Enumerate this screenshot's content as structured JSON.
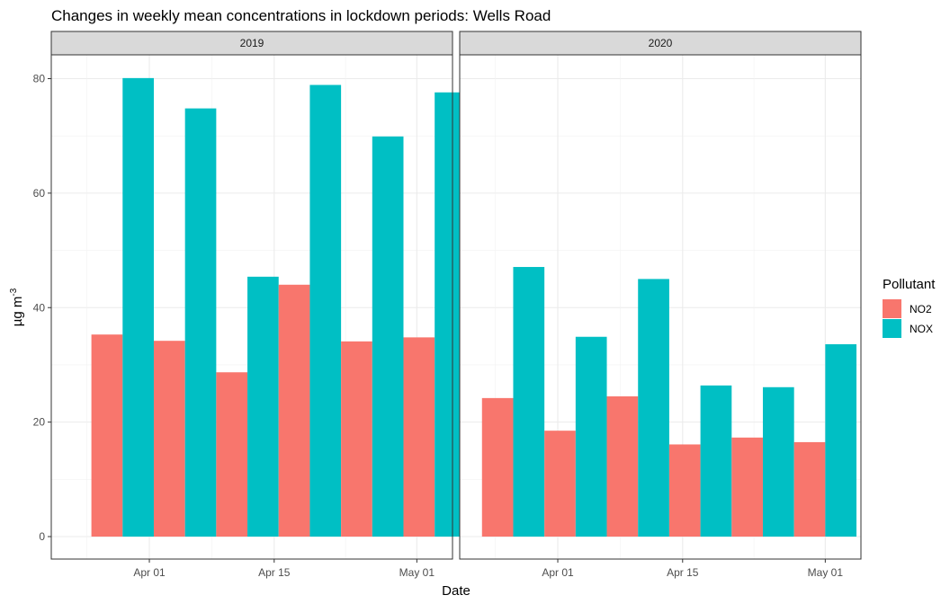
{
  "chart_data": {
    "type": "bar",
    "title": "Changes in weekly mean concentrations in lockdown periods: Wells Road",
    "xlabel": "Date",
    "ylabel": "µg m",
    "ylabel_superscript": "-3",
    "ylim": [
      0,
      84
    ],
    "yticks": [
      0,
      20,
      40,
      60,
      80
    ],
    "grid": true,
    "legend": {
      "title": "Pollutant",
      "position": "right",
      "entries": [
        {
          "name": "NO2",
          "color": "#F8766D"
        },
        {
          "name": "NOX",
          "color": "#00BFC4"
        }
      ]
    },
    "panels": [
      {
        "label": "2019",
        "x_range": [
          "2019-03-21",
          "2019-05-05"
        ],
        "xticks": [
          {
            "date": "2019-04-01",
            "label": "Apr 01"
          },
          {
            "date": "2019-04-15",
            "label": "Apr 15"
          },
          {
            "date": "2019-05-01",
            "label": "May 01"
          }
        ],
        "categories": [
          "2019-03-29",
          "2019-04-05",
          "2019-04-12",
          "2019-04-19",
          "2019-04-26",
          "2019-05-03"
        ],
        "series": [
          {
            "name": "NO2",
            "values": [
              35.3,
              34.2,
              28.7,
              44.0,
              34.1,
              34.8
            ]
          },
          {
            "name": "NOX",
            "values": [
              80.1,
              74.8,
              45.4,
              78.9,
              69.9,
              77.6
            ]
          }
        ]
      },
      {
        "label": "2020",
        "x_range": [
          "2020-03-21",
          "2020-05-05"
        ],
        "xticks": [
          {
            "date": "2020-04-01",
            "label": "Apr 01"
          },
          {
            "date": "2020-04-15",
            "label": "Apr 15"
          },
          {
            "date": "2020-05-01",
            "label": "May 01"
          }
        ],
        "categories": [
          "2020-03-27",
          "2020-04-03",
          "2020-04-10",
          "2020-04-17",
          "2020-04-24",
          "2020-05-01"
        ],
        "series": [
          {
            "name": "NO2",
            "values": [
              24.2,
              18.5,
              24.5,
              16.1,
              17.3,
              16.5
            ]
          },
          {
            "name": "NOX",
            "values": [
              47.1,
              34.9,
              45.0,
              26.4,
              26.1,
              33.6
            ]
          }
        ]
      }
    ]
  }
}
